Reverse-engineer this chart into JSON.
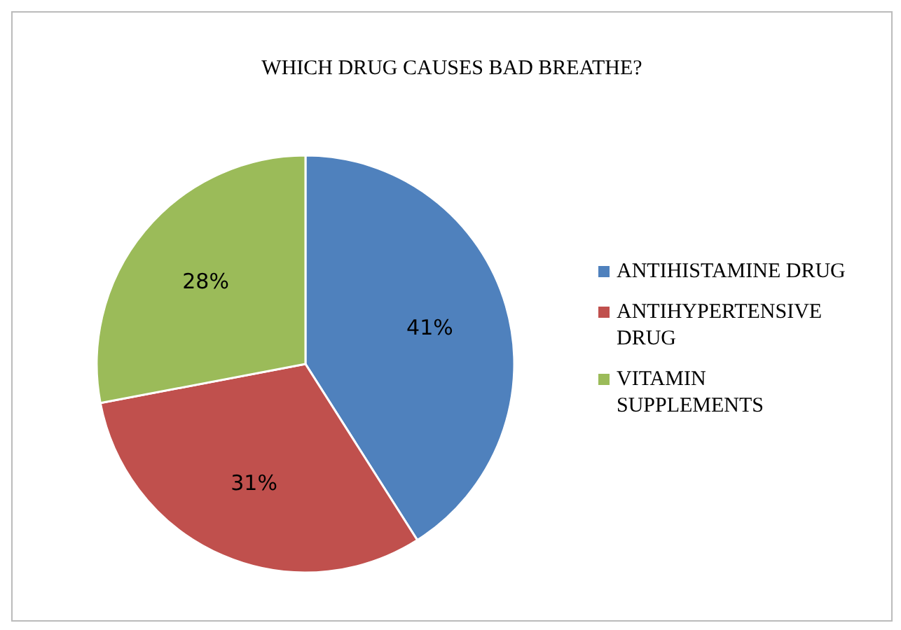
{
  "chart_data": {
    "type": "pie",
    "title": "WHICH DRUG CAUSES BAD BREATHE?",
    "categories": [
      "ANTIHISTAMINE DRUG",
      "ANTIHYPERTENSIVE DRUG",
      "VITAMIN SUPPLEMENTS"
    ],
    "values": [
      41,
      31,
      28
    ],
    "value_labels": [
      "41%",
      "31%",
      "28%"
    ],
    "colors": [
      "#4f81bd",
      "#c0504d",
      "#9bbb59"
    ],
    "legend": "right"
  }
}
